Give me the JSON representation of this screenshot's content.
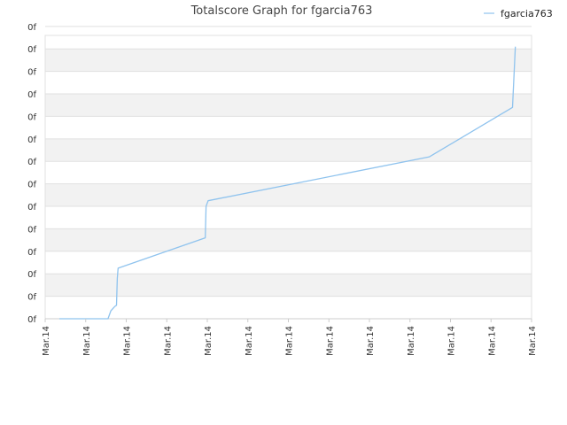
{
  "chart_data": {
    "type": "line",
    "title": "Totalscore Graph for fgarcia763",
    "xlabel": "",
    "ylabel": "",
    "x_tick_labels": [
      "Mar.14",
      "Mar.14",
      "Mar.14",
      "Mar.14",
      "Mar.14",
      "Mar.14",
      "Mar.14",
      "Mar.14",
      "Mar.14",
      "Mar.14",
      "Mar.14",
      "Mar.14",
      "Mar.14"
    ],
    "y_tick_labels": [
      "0f",
      "0f",
      "0f",
      "0f",
      "0f",
      "0f",
      "0f",
      "0f",
      "0f",
      "0f",
      "0f",
      "0f",
      "0f",
      "0f"
    ],
    "xlim": [
      0,
      12
    ],
    "ylim": [
      0,
      12.6
    ],
    "grid": true,
    "alternating_bands": true,
    "legend_position": "top-right",
    "series": [
      {
        "name": "fgarcia763",
        "color": "#8fc3ee",
        "x": [
          0.35,
          1.55,
          1.62,
          1.72,
          1.76,
          1.78,
          1.8,
          3.95,
          3.97,
          4.02,
          9.48,
          11.53,
          11.6
        ],
        "y": [
          0.0,
          0.0,
          0.35,
          0.55,
          0.6,
          1.8,
          2.25,
          3.6,
          5.0,
          5.25,
          7.2,
          9.4,
          12.1
        ]
      }
    ]
  },
  "colors": {
    "band": "#f2f2f2",
    "grid": "#e0e0e0",
    "axis": "#cccccc"
  }
}
